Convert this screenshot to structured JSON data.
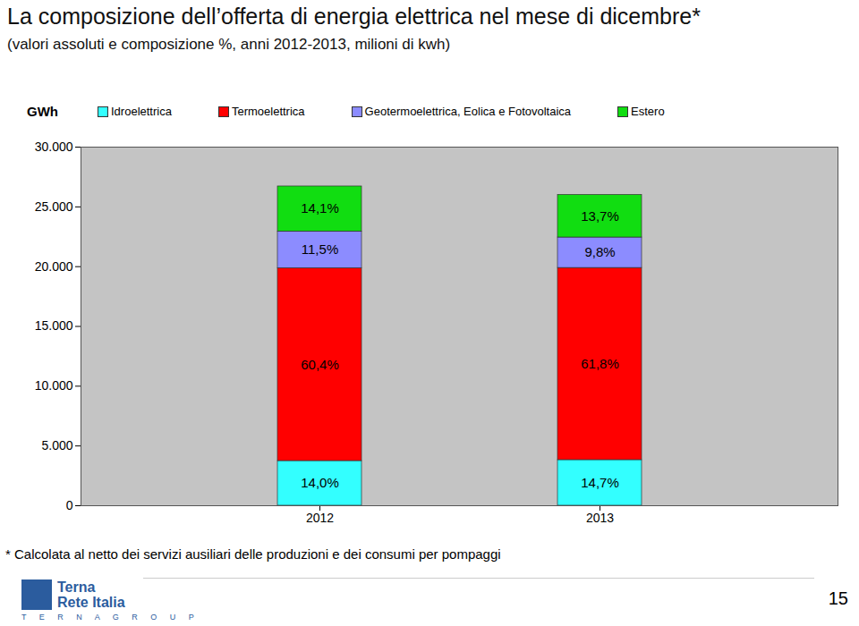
{
  "chart_data": {
    "type": "bar",
    "stacked": true,
    "title": "La composizione dell’offerta di energia elettrica nel mese di dicembre*",
    "subtitle": "(valori assoluti e composizione %, anni 2012-2013, milioni di kwh)",
    "y_label": "GWh",
    "categories": [
      "2012",
      "2013"
    ],
    "series": [
      {
        "name": "Idroelettrica",
        "color": "#33ffff",
        "values": [
          3740,
          3820
        ],
        "share_labels": [
          "14,0%",
          "14,7%"
        ]
      },
      {
        "name": "Termoelettrica",
        "color": "#ff0000",
        "values": [
          16130,
          16070
        ],
        "share_labels": [
          "60,4%",
          "61,8%"
        ]
      },
      {
        "name": "Geotermoelettrica, Eolica e Fotovoltaica",
        "color": "#8c8cff",
        "values": [
          3070,
          2550
        ],
        "share_labels": [
          "11,5%",
          "9,8%"
        ]
      },
      {
        "name": "Estero",
        "color": "#11dd11",
        "values": [
          3770,
          3560
        ],
        "share_labels": [
          "14,1%",
          "13,7%"
        ]
      }
    ],
    "ylim": [
      0,
      30000
    ],
    "yticks": [
      0,
      {
        "value": 5000,
        "label": "5.000"
      },
      {
        "value": 10000,
        "label": "10.000"
      },
      {
        "value": 15000,
        "label": "15.000"
      },
      {
        "value": 20000,
        "label": "20.000"
      },
      {
        "value": 25000,
        "label": "25.000"
      },
      {
        "value": 30000,
        "label": "30.000"
      }
    ],
    "grid": false,
    "legend": "top",
    "note": "* Calcolata al netto dei servizi ausiliari delle produzioni e dei consumi per pompaggi",
    "logo": [
      "Terna",
      "Rete Italia",
      "T E R N A   G R O U P"
    ],
    "page": "15"
  }
}
